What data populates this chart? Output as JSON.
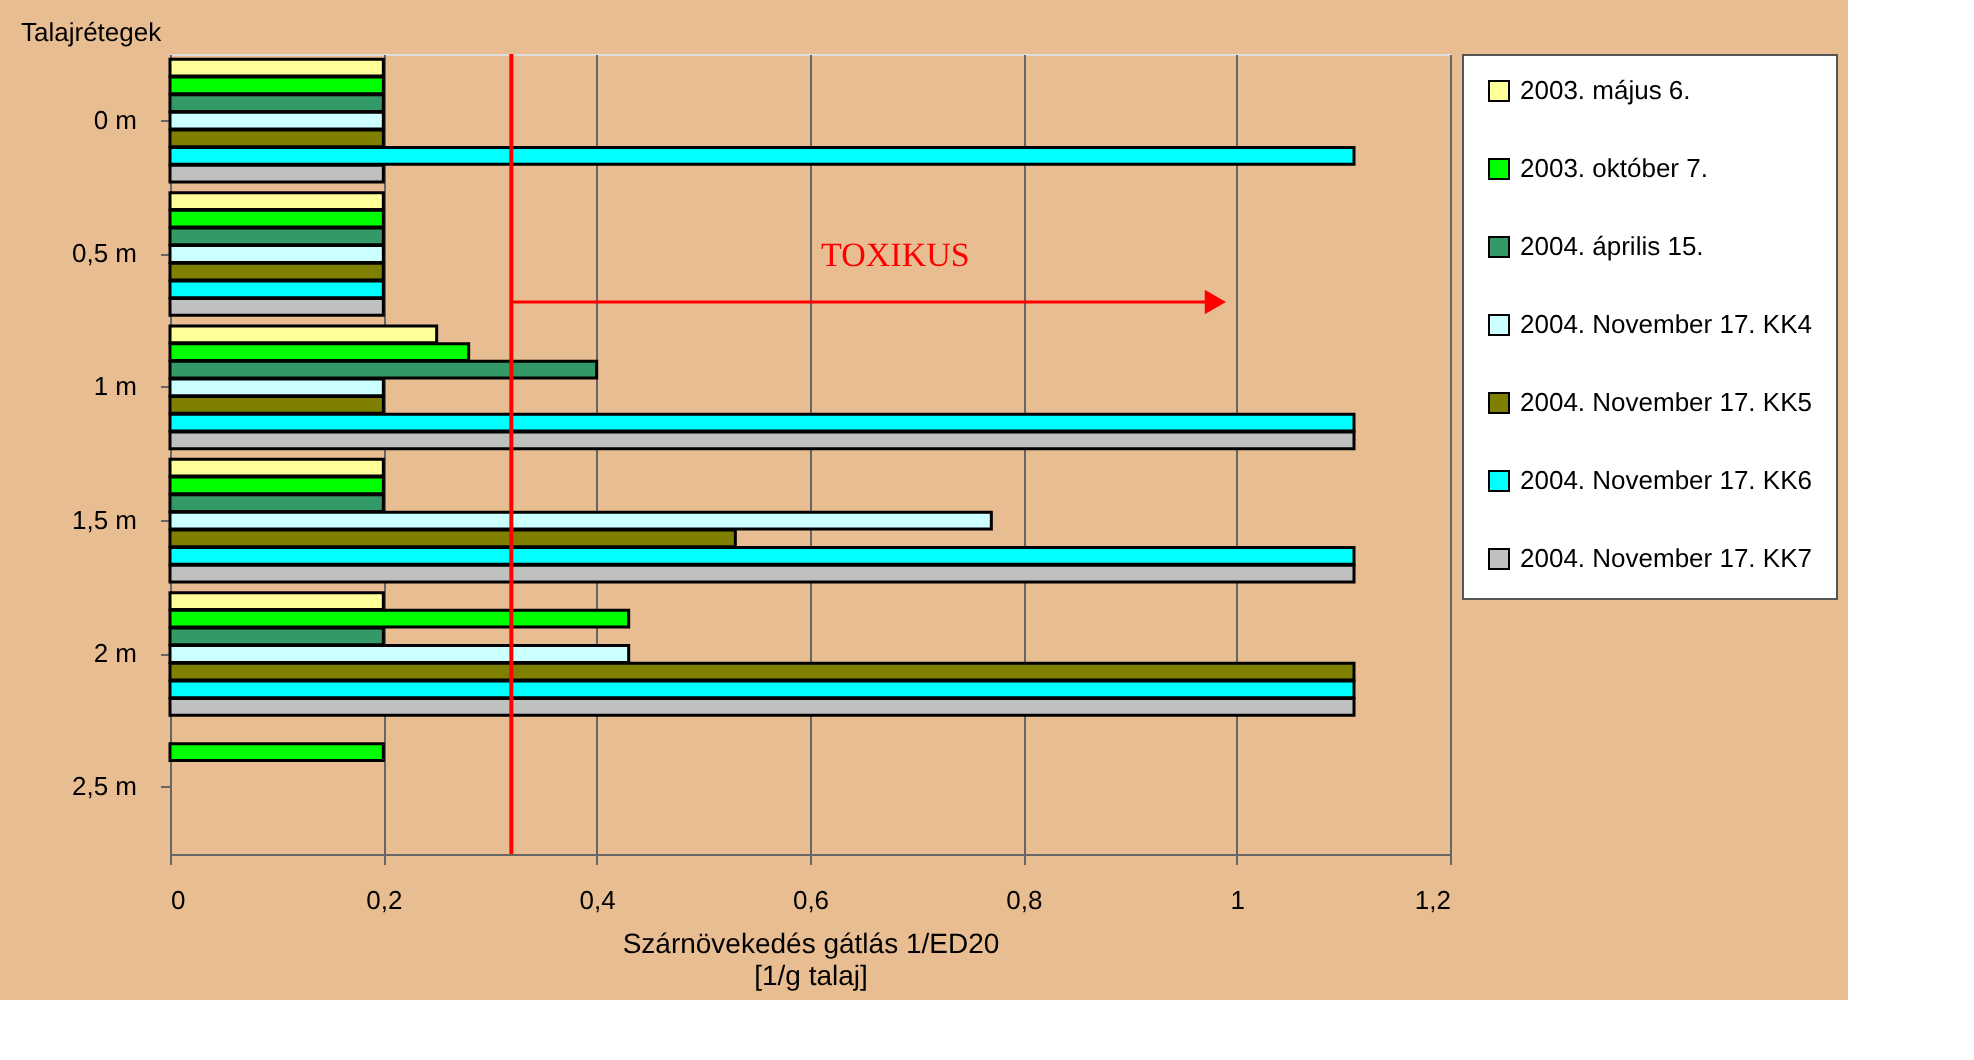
{
  "chart_data": {
    "type": "bar",
    "orientation": "horizontal",
    "xlabel": "Szárnövekedés gátlás 1/ED20\n[1/g talaj]",
    "ylabel": "Talajrétegek",
    "categories": [
      "0 m",
      "0,5 m",
      "1 m",
      "1,5 m",
      "2 m",
      "2,5 m"
    ],
    "series": [
      {
        "name": "2003. május 6.",
        "color": "#ffff99",
        "values": [
          0.2,
          0.2,
          0.25,
          0.2,
          0.2,
          null
        ]
      },
      {
        "name": "2003. október 7.",
        "color": "#00ff00",
        "values": [
          0.2,
          0.2,
          0.28,
          0.2,
          0.43,
          0.2
        ]
      },
      {
        "name": "2004. április 15.",
        "color": "#339966",
        "values": [
          0.2,
          0.2,
          0.4,
          0.2,
          0.2,
          null
        ]
      },
      {
        "name": "2004. November 17. KK4",
        "color": "#ccffff",
        "values": [
          0.2,
          0.2,
          0.2,
          0.77,
          0.43,
          null
        ]
      },
      {
        "name": "2004. November 17. KK5",
        "color": "#808000",
        "values": [
          0.2,
          0.2,
          0.2,
          0.53,
          1.11,
          null
        ]
      },
      {
        "name": "2004. November 17. KK6",
        "color": "#00ffff",
        "values": [
          1.11,
          0.2,
          1.11,
          1.11,
          1.11,
          null
        ]
      },
      {
        "name": "2004. November 17. KK7",
        "color": "#c0c0c0",
        "values": [
          0.2,
          0.2,
          1.11,
          1.11,
          1.11,
          null
        ]
      }
    ],
    "xlim": [
      0,
      1.2
    ],
    "xticks": [
      0,
      {
        "value": 0.2,
        "label": "0,2"
      },
      {
        "value": 0.4,
        "label": "0,4"
      },
      {
        "value": 0.6,
        "label": "0,6"
      },
      {
        "value": 0.8,
        "label": "0,8"
      },
      1,
      {
        "value": 1.2,
        "label": "1,2"
      }
    ],
    "ref_lines": [
      {
        "axis": "x",
        "value": 0.32,
        "label": "TOXIKUS",
        "color": "#ff0000"
      }
    ],
    "grid": "x",
    "legend": "right"
  }
}
